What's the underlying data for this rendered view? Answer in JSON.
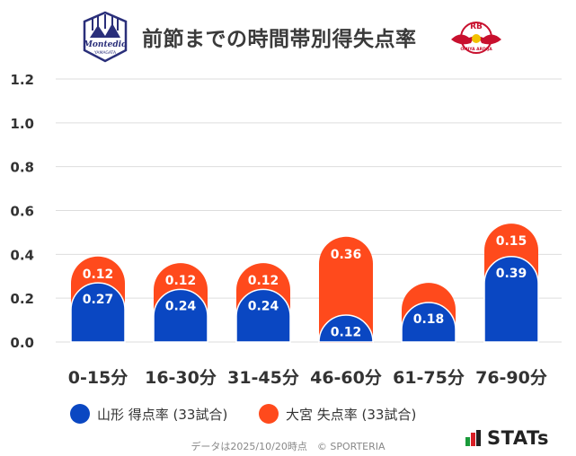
{
  "header": {
    "title": "前節までの時間帯別得失点率",
    "logo_left_text": "Montedio",
    "logo_left_sub": "YAMAGATA",
    "logo_right_text": "RB",
    "logo_right_sub": "OMIYA ARDIJA"
  },
  "colors": {
    "home": "#0a47c2",
    "away": "#ff4a1c",
    "grid": "#dddddd",
    "axis_text": "#333333"
  },
  "chart_data": {
    "type": "bar",
    "stacked": true,
    "categories": [
      "0-15分",
      "16-30分",
      "31-45分",
      "46-60分",
      "61-75分",
      "76-90分"
    ],
    "series": [
      {
        "name": "山形 得点率 (33試合)",
        "values": [
          0.27,
          0.24,
          0.24,
          0.12,
          0.18,
          0.39
        ]
      },
      {
        "name": "大宮 失点率 (33試合)",
        "values": [
          0.12,
          0.12,
          0.12,
          0.36,
          0.09,
          0.15
        ]
      }
    ],
    "data_labels": [
      [
        "0.27",
        "0.24",
        "0.24",
        "0.12",
        "0.18",
        "0.39"
      ],
      [
        "0.12",
        "0.12",
        "0.12",
        "0.36",
        "",
        "0.15"
      ]
    ],
    "yticks": [
      "0.0",
      "0.2",
      "0.4",
      "0.6",
      "0.8",
      "1.0",
      "1.2"
    ],
    "ylim": [
      0,
      1.2
    ],
    "grid": true,
    "legend": "bottom"
  },
  "legend": {
    "home_label": "山形 得点率 (33試合)",
    "away_label": "大宮 失点率 (33試合)"
  },
  "footer": {
    "note": "データは2025/10/20時点　© SPORTERIA",
    "brand": "STATs"
  }
}
